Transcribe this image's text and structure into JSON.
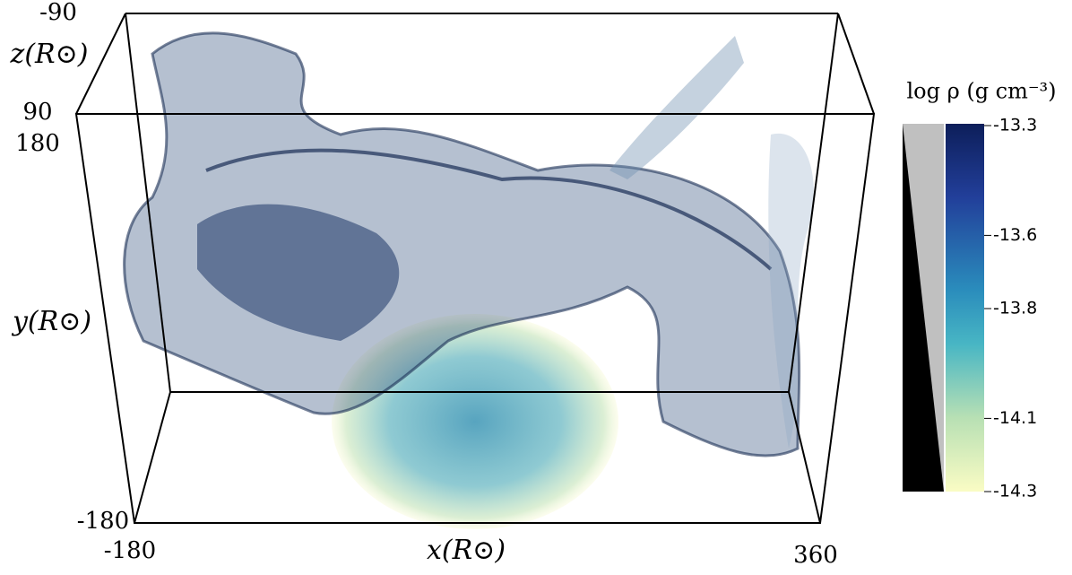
{
  "axes": {
    "z_label": "z(R⊙)",
    "z_ticks": [
      "-90",
      "90"
    ],
    "y_label": "y(R⊙)",
    "y_ticks": [
      "180",
      "-180"
    ],
    "x_label": "x(R⊙)",
    "x_ticks": [
      "-180",
      "360"
    ]
  },
  "colorbar": {
    "label": "log ρ (g cm⁻³)",
    "lim": [
      -14.3,
      -13.3
    ],
    "ticks": [
      -13.3,
      -13.6,
      -13.8,
      -14.1,
      -14.3
    ]
  }
}
